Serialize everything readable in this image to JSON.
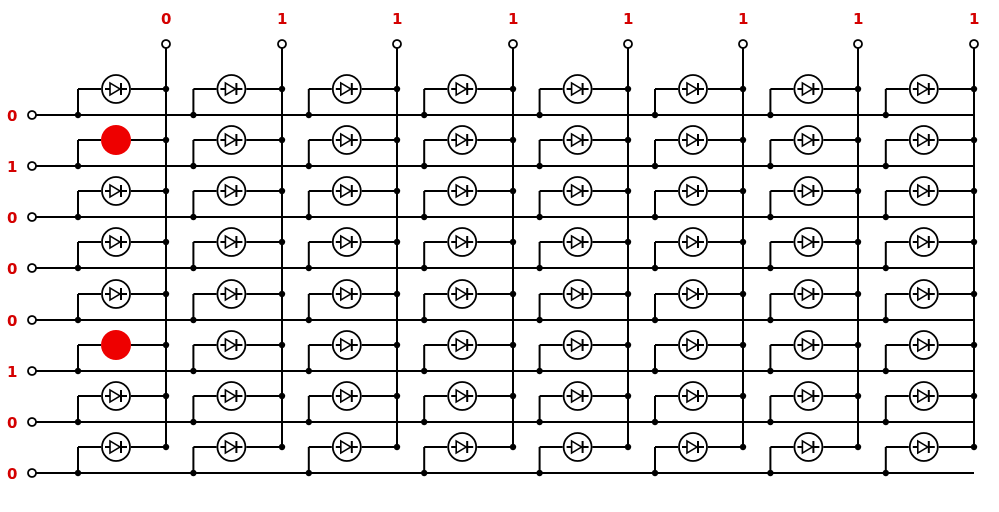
{
  "colors": {
    "wire": "#000000",
    "label": "#d40000",
    "lit": "#ee0000",
    "background": "#ffffff"
  },
  "columns": {
    "labels": [
      "0",
      "1",
      "1",
      "1",
      "1",
      "1",
      "1",
      "1"
    ]
  },
  "rows": {
    "labels": [
      "0",
      "1",
      "0",
      "0",
      "0",
      "1",
      "0",
      "0"
    ]
  },
  "leds": {
    "lit": [
      [
        1,
        0
      ],
      [
        5,
        0
      ]
    ]
  }
}
